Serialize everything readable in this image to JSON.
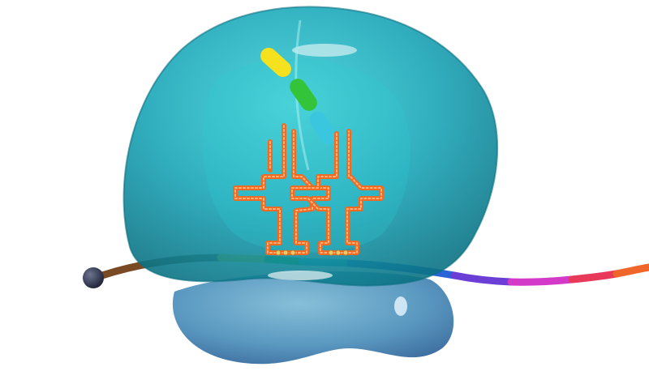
{
  "illustration": {
    "subject": "ribosome-translation",
    "colors": {
      "large_subunit": "#1fa8b6",
      "large_subunit_dark": "#0e7f8f",
      "small_subunit": "#5f9fc2",
      "small_subunit_dark": "#3d6f9e",
      "trna": "#f06a22",
      "trna_light": "#ffb37a",
      "mrna_cap": "#2e3550",
      "mrna_leader": "#7a4a25",
      "peptide_yellow": "#f5e11e",
      "peptide_green": "#33c43a",
      "peptide_cyan": "#39c6de"
    },
    "mrna_codons": [
      {
        "color": "#f3dc16",
        "name": "yellow"
      },
      {
        "color": "#2fc02f",
        "name": "green"
      },
      {
        "color": "#27b9d9",
        "name": "cyan"
      },
      {
        "color": "#2a63d8",
        "name": "blue"
      },
      {
        "color": "#6b3fd6",
        "name": "violet"
      },
      {
        "color": "#d43ac8",
        "name": "magenta"
      },
      {
        "color": "#e8395a",
        "name": "red"
      },
      {
        "color": "#f0662a",
        "name": "orange"
      }
    ],
    "peptide_beads": [
      {
        "color": "#f5e11e",
        "name": "yellow"
      },
      {
        "color": "#33c43a",
        "name": "green"
      },
      {
        "color": "#39c6de",
        "name": "cyan"
      }
    ]
  }
}
